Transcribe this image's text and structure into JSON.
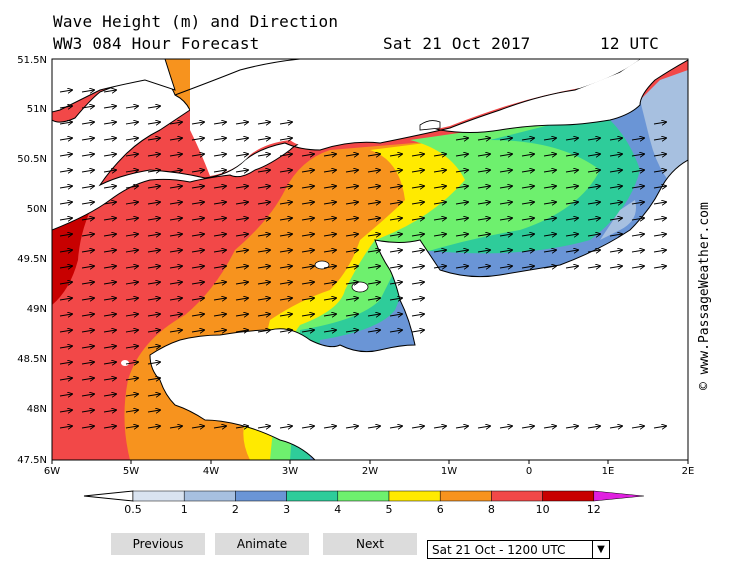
{
  "header": {
    "title": "Wave Height (m) and Direction",
    "model": "WW3 084 Hour Forecast",
    "date": "Sat 21 Oct 2017",
    "time": "12 UTC"
  },
  "map": {
    "latitudes": [
      "51.5N",
      "51N",
      "50.5N",
      "50N",
      "49.5N",
      "49N",
      "48.5N",
      "48N",
      "47.5N"
    ],
    "longitudes": [
      "6W",
      "5W",
      "4W",
      "3W",
      "2W",
      "1W",
      "0",
      "1E",
      "2E"
    ],
    "credit": "© www.PassageWeather.com"
  },
  "legend": {
    "labels": [
      "0.5",
      "1",
      "2",
      "3",
      "4",
      "5",
      "6",
      "8",
      "10",
      "12"
    ],
    "colors": [
      "#d9e3f0",
      "#a7c0e0",
      "#6a95d6",
      "#2ecc9a",
      "#6ef06e",
      "#ffea00",
      "#f7931e",
      "#f24848",
      "#c80000",
      "#e020e0"
    ]
  },
  "controls": {
    "previous": "Previous",
    "animate": "Animate",
    "next": "Next",
    "select_value": "Sat 21 Oct - 1200 UTC"
  }
}
